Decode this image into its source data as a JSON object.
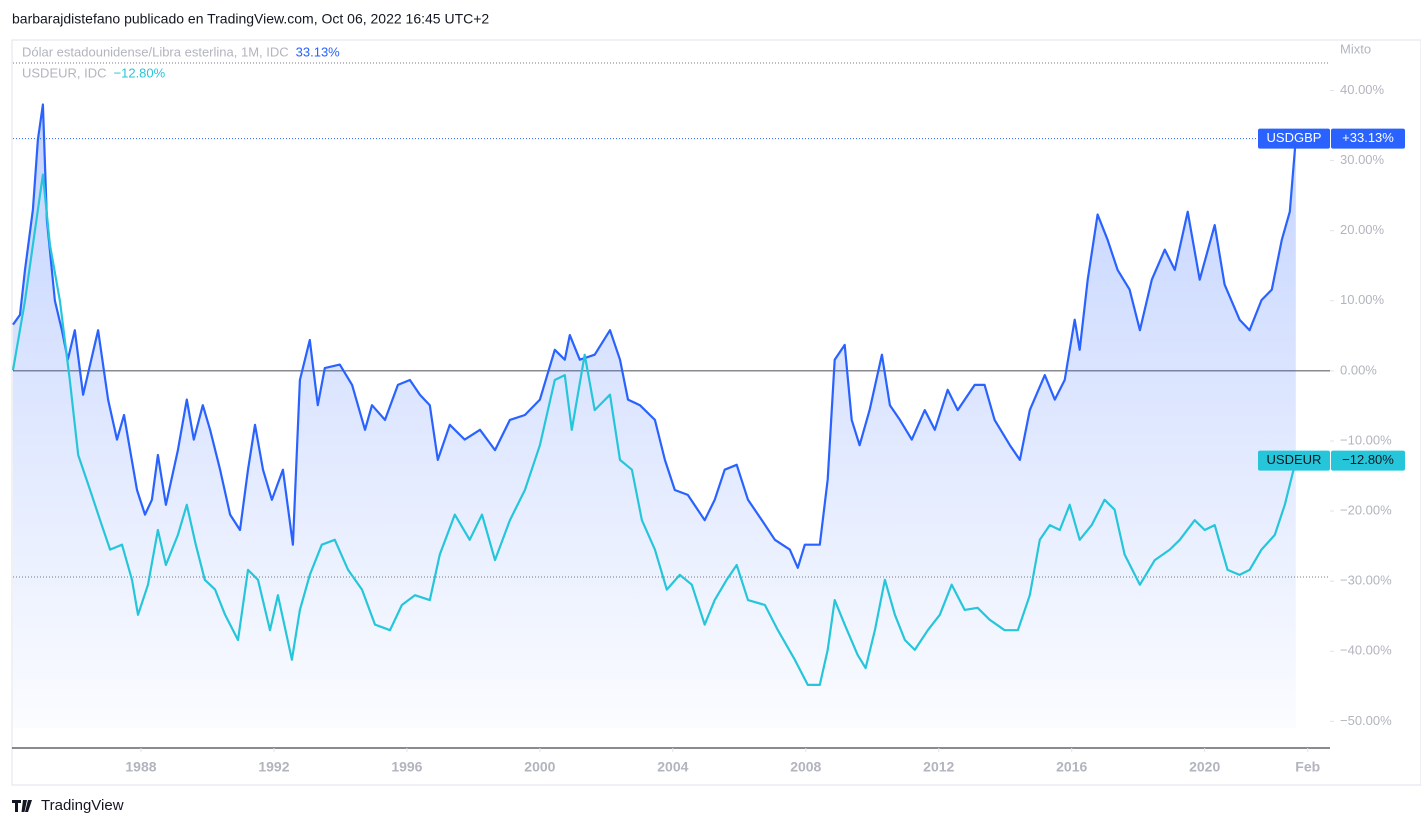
{
  "header": "barbarajdistefano publicado en TradingView.com, Oct 06, 2022 16:45 UTC+2",
  "footer": "TradingView",
  "chart_data": {
    "type": "line",
    "scale_mode": "Mixto",
    "xlim": [
      1984.15,
      2023.77
    ],
    "ylim": [
      -53.8,
      47.2
    ],
    "xticks": [
      1988,
      1992,
      1996,
      2000,
      2004,
      2008,
      2012,
      2016,
      2020,
      {
        "value": 2023.1,
        "label": "Feb"
      }
    ],
    "yticks": [
      {
        "value": 40,
        "label": "40.00%"
      },
      {
        "value": 30,
        "label": "30.00%"
      },
      {
        "value": 20,
        "label": "20.00%"
      },
      {
        "value": 10,
        "label": "10.00%"
      },
      {
        "value": 0,
        "label": "0.00%"
      },
      {
        "value": -10,
        "label": "−10.00%"
      },
      {
        "value": -20,
        "label": "−20.00%"
      },
      {
        "value": -30,
        "label": "−30.00%"
      },
      {
        "value": -40,
        "label": "−40.00%"
      },
      {
        "value": -50,
        "label": "−50.00%"
      }
    ],
    "series": [
      {
        "name": "USDGBP",
        "legend_text": "Dólar estadounidense/Libra esterlina, 1M, IDC",
        "legend_value_label": "33.13%",
        "tag_label": "+33.13%",
        "color": "#2962ff",
        "area": true,
        "x": [
          1984.15,
          1984.36,
          1984.51,
          1984.75,
          1984.9,
          1985.05,
          1985.17,
          1985.41,
          1985.62,
          1985.8,
          1986.01,
          1986.26,
          1986.47,
          1986.71,
          1987.01,
          1987.28,
          1987.49,
          1987.88,
          1988.12,
          1988.33,
          1988.51,
          1988.75,
          1989.11,
          1989.38,
          1989.59,
          1989.86,
          1990.08,
          1990.38,
          1990.68,
          1990.98,
          1991.22,
          1991.43,
          1991.67,
          1991.94,
          1992.27,
          1992.57,
          1992.78,
          1993.08,
          1993.32,
          1993.53,
          1993.98,
          1994.35,
          1994.74,
          1994.95,
          1995.34,
          1995.73,
          1996.09,
          1996.39,
          1996.69,
          1996.93,
          1997.29,
          1997.74,
          1998.2,
          1998.65,
          1999.1,
          1999.55,
          2000.0,
          2000.45,
          2000.75,
          2000.9,
          2001.2,
          2001.65,
          2002.11,
          2002.41,
          2002.65,
          2003.01,
          2003.46,
          2003.76,
          2004.06,
          2004.45,
          2004.96,
          2005.26,
          2005.56,
          2005.92,
          2006.26,
          2006.68,
          2007.07,
          2007.52,
          2007.76,
          2007.97,
          2008.42,
          2008.66,
          2008.87,
          2009.17,
          2009.38,
          2009.62,
          2009.92,
          2010.29,
          2010.53,
          2010.83,
          2011.19,
          2011.58,
          2011.88,
          2012.27,
          2012.57,
          2013.08,
          2013.38,
          2013.68,
          2014.14,
          2014.44,
          2014.74,
          2015.19,
          2015.49,
          2015.79,
          2016.09,
          2016.24,
          2016.48,
          2016.78,
          2017.08,
          2017.38,
          2017.74,
          2018.05,
          2018.41,
          2018.8,
          2019.1,
          2019.49,
          2019.85,
          2020.3,
          2020.6,
          2021.05,
          2021.35,
          2021.71,
          2022.02,
          2022.32,
          2022.56,
          2022.74
        ],
        "values": [
          6.6,
          8,
          14.4,
          23,
          33,
          38,
          21.5,
          10,
          5.8,
          1.6,
          5.8,
          -3.4,
          0.9,
          5.8,
          -4.1,
          -9.8,
          -6.3,
          -17,
          -20.5,
          -18.4,
          -12,
          -19.1,
          -11.3,
          -4.1,
          -9.8,
          -4.9,
          -8.4,
          -14.1,
          -20.5,
          -22.7,
          -14.1,
          -7.7,
          -14.1,
          -18.4,
          -14.1,
          -24.8,
          -1.3,
          4.4,
          -4.9,
          0.4,
          0.9,
          -2,
          -8.4,
          -4.9,
          -7,
          -2,
          -1.3,
          -3.4,
          -4.9,
          -12.7,
          -7.7,
          -9.8,
          -8.4,
          -11.3,
          -7,
          -6.3,
          -4.1,
          3,
          1.6,
          5.1,
          1.6,
          2.3,
          5.8,
          1.6,
          -4.1,
          -4.9,
          -7,
          -12.7,
          -17,
          -17.7,
          -21.3,
          -18.4,
          -14.1,
          -13.4,
          -18.4,
          -21.3,
          -24.1,
          -25.5,
          -28.1,
          -24.8,
          -24.8,
          -15.5,
          1.6,
          3.7,
          -7,
          -10.6,
          -5.6,
          2.3,
          -4.9,
          -7,
          -9.8,
          -5.6,
          -8.4,
          -2.7,
          -5.6,
          -2,
          -2,
          -7,
          -10.6,
          -12.7,
          -5.6,
          -0.6,
          -4.1,
          -1.3,
          7.3,
          3,
          13,
          22.3,
          18.7,
          14.4,
          11.6,
          5.8,
          13,
          17.3,
          14.4,
          22.7,
          13,
          20.8,
          12.3,
          7.3,
          5.8,
          10.1,
          11.6,
          18.7,
          22.7,
          33.13
        ]
      },
      {
        "name": "USDEUR",
        "legend_text": "USDEUR, IDC",
        "legend_value_label": "−12.80%",
        "tag_label": "−12.80%",
        "color": "#26c6da",
        "area": false,
        "x": [
          1984.15,
          1984.51,
          1984.81,
          1985.05,
          1985.26,
          1985.56,
          1985.86,
          1986.11,
          1986.47,
          1986.77,
          1987.07,
          1987.43,
          1987.73,
          1987.91,
          1988.21,
          1988.51,
          1988.75,
          1989.11,
          1989.38,
          1989.65,
          1989.92,
          1990.23,
          1990.53,
          1990.92,
          1991.22,
          1991.52,
          1991.88,
          1992.12,
          1992.54,
          1992.78,
          1993.08,
          1993.44,
          1993.83,
          1994.23,
          1994.65,
          1995.04,
          1995.49,
          1995.85,
          1996.24,
          1996.69,
          1996.99,
          1997.44,
          1997.89,
          1998.26,
          1998.65,
          1999.1,
          1999.55,
          2000.0,
          2000.45,
          2000.75,
          2000.96,
          2001.35,
          2001.65,
          2002.11,
          2002.41,
          2002.77,
          2003.07,
          2003.46,
          2003.82,
          2004.21,
          2004.57,
          2004.96,
          2005.26,
          2005.62,
          2005.92,
          2006.26,
          2006.77,
          2007.16,
          2007.67,
          2008.06,
          2008.42,
          2008.66,
          2008.87,
          2009.17,
          2009.56,
          2009.8,
          2010.08,
          2010.38,
          2010.68,
          2010.98,
          2011.28,
          2011.67,
          2012.03,
          2012.39,
          2012.78,
          2013.17,
          2013.53,
          2013.98,
          2014.38,
          2014.74,
          2015.04,
          2015.34,
          2015.64,
          2015.94,
          2016.24,
          2016.6,
          2016.99,
          2017.29,
          2017.59,
          2018.05,
          2018.5,
          2018.95,
          2019.25,
          2019.7,
          2020.0,
          2020.3,
          2020.69,
          2021.05,
          2021.35,
          2021.71,
          2022.11,
          2022.41,
          2022.74
        ],
        "values": [
          0.1,
          10,
          20,
          28,
          18,
          10,
          -1.3,
          -12,
          -17,
          -21.3,
          -25.5,
          -24.8,
          -29.8,
          -34.8,
          -30.5,
          -22.7,
          -27.7,
          -23.4,
          -19.1,
          -24.8,
          -29.8,
          -31.2,
          -34.8,
          -38.4,
          -28.4,
          -29.8,
          -37,
          -32,
          -41.2,
          -34.1,
          -29.1,
          -24.8,
          -24.1,
          -28.4,
          -31.2,
          -36.2,
          -37,
          -33.4,
          -32,
          -32.7,
          -26.2,
          -20.5,
          -24.1,
          -20.5,
          -27,
          -21.3,
          -17,
          -10.6,
          -1.3,
          -0.6,
          -8.4,
          2.3,
          -5.6,
          -3.4,
          -12.7,
          -14.1,
          -21.3,
          -25.5,
          -31.2,
          -29.1,
          -30.5,
          -36.2,
          -32.7,
          -29.8,
          -27.7,
          -32.7,
          -33.4,
          -37,
          -41.2,
          -44.8,
          -44.8,
          -39.8,
          -32.7,
          -36.2,
          -40.5,
          -42.4,
          -37,
          -29.8,
          -34.8,
          -38.4,
          -39.8,
          -37,
          -34.8,
          -30.5,
          -34.1,
          -33.8,
          -35.5,
          -37,
          -37,
          -32,
          -24.1,
          -22,
          -22.7,
          -19.1,
          -24.1,
          -22,
          -18.4,
          -19.8,
          -26.2,
          -30.5,
          -27,
          -25.5,
          -24.1,
          -21.3,
          -22.7,
          -22,
          -28.4,
          -29.1,
          -28.4,
          -25.5,
          -23.4,
          -19.1,
          -12.8
        ]
      }
    ]
  }
}
